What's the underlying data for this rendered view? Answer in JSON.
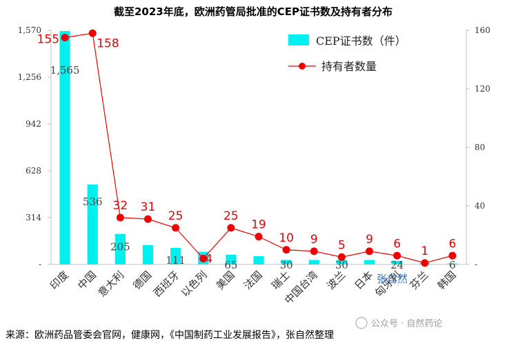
{
  "chart_data": {
    "type": "bar",
    "title": "截至2023年底，欧洲药管局批准的CEP证书数及持有者分布",
    "categories": [
      "印度",
      "中国",
      "意大利",
      "德国",
      "西班牙",
      "以色列",
      "美国",
      "法国",
      "瑞士",
      "中国台湾",
      "波兰",
      "日本",
      "匈牙利",
      "芬兰",
      "韩国"
    ],
    "series": [
      {
        "name": "CEP证书数（件）",
        "axis": "left",
        "kind": "bar",
        "color": "#00f0f0",
        "values": [
          1565,
          536,
          205,
          130,
          111,
          85,
          65,
          55,
          30,
          30,
          30,
          30,
          24,
          8,
          6
        ]
      },
      {
        "name": "持有者数量",
        "axis": "right",
        "kind": "line",
        "color": "#ee0000",
        "values": [
          155,
          158,
          32,
          31,
          25,
          4,
          25,
          19,
          10,
          9,
          5,
          9,
          6,
          1,
          6
        ]
      }
    ],
    "bar_labels": [
      {
        "index": 0,
        "text": "1,565"
      },
      {
        "index": 1,
        "text": "536"
      },
      {
        "index": 2,
        "text": "205"
      },
      {
        "index": 4,
        "text": "111"
      },
      {
        "index": 6,
        "text": "65"
      },
      {
        "index": 8,
        "text": "30"
      },
      {
        "index": 10,
        "text": "30"
      },
      {
        "index": 12,
        "text": "24"
      },
      {
        "index": 14,
        "text": "6"
      }
    ],
    "yaxis_left": {
      "ticks": [
        "1,570",
        "1,256",
        "942",
        "628",
        "314",
        "-"
      ],
      "tick_values": [
        1570,
        1256,
        942,
        628,
        314,
        0
      ],
      "ylim": [
        0,
        1570
      ]
    },
    "yaxis_right": {
      "ticks": [
        "160",
        "120",
        "80",
        "40",
        "-"
      ],
      "tick_values": [
        160,
        120,
        80,
        40,
        0
      ],
      "ylim": [
        0,
        160
      ]
    },
    "legend_position": "top-right",
    "grid": false
  },
  "footer": {
    "source": "来源：欧洲药品管委会官网，健康网，《中国制药工业发展报告》，张自然整理",
    "watermark": "公众号 · 自然药论",
    "signature": "张自然"
  },
  "colors": {
    "bar": "#00f0f0",
    "line": "#ee0000",
    "label_red": "#e0000a"
  }
}
